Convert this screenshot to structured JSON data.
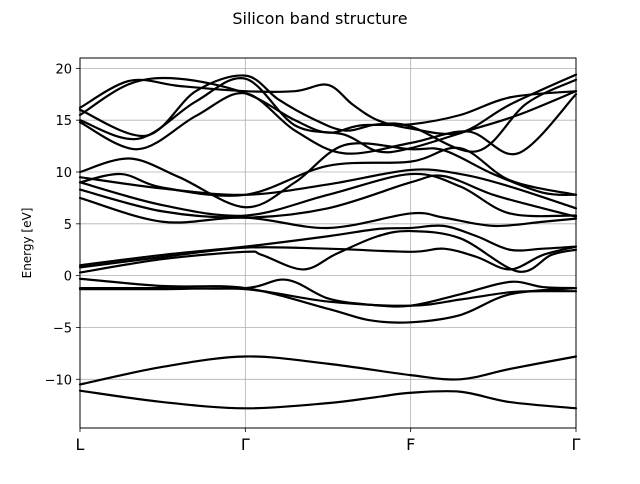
{
  "chart_data": {
    "type": "line",
    "title": "Silicon band structure",
    "xlabel": "",
    "ylabel": "Energy [eV]",
    "ylim": [
      -14.7,
      21.0
    ],
    "yticks": [
      -10,
      -5,
      0,
      5,
      10,
      15,
      20
    ],
    "xlim": [
      0,
      3
    ],
    "x_tick_positions": [
      0,
      1,
      2,
      3
    ],
    "x_tick_labels": [
      "L",
      "Γ",
      "F",
      "Γ"
    ],
    "grid": true,
    "line_color": "#000000",
    "series": [
      {
        "x": [
          0,
          0.5,
          1,
          1.5,
          1.8,
          2,
          2.3,
          2.6,
          3
        ],
        "y": [
          -11.1,
          -12.2,
          -12.8,
          -12.3,
          -11.7,
          -11.3,
          -11.2,
          -12.2,
          -12.8
        ]
      },
      {
        "x": [
          0,
          0.5,
          1,
          1.5,
          2,
          2.3,
          2.6,
          3
        ],
        "y": [
          -10.5,
          -8.8,
          -7.8,
          -8.5,
          -9.6,
          -10.0,
          -9.0,
          -7.8
        ]
      },
      {
        "x": [
          0,
          0.5,
          1,
          1.25,
          1.5,
          1.75,
          2,
          2.3,
          2.6,
          2.8,
          3
        ],
        "y": [
          -1.2,
          -1.2,
          -1.2,
          -0.4,
          -2.2,
          -2.8,
          -2.9,
          -1.8,
          -0.6,
          -1.1,
          -1.2
        ]
      },
      {
        "x": [
          0,
          0.5,
          1,
          1.5,
          2,
          2.3,
          2.6,
          2.8,
          3
        ],
        "y": [
          -1.3,
          -1.3,
          -1.3,
          -2.5,
          -2.9,
          -2.3,
          -1.6,
          -1.5,
          -1.5
        ]
      },
      {
        "x": [
          0,
          0.5,
          1,
          1.5,
          1.75,
          2,
          2.3,
          2.6,
          3
        ],
        "y": [
          -0.3,
          -1.0,
          -1.2,
          -3.2,
          -4.3,
          -4.5,
          -3.8,
          -1.8,
          -1.2
        ]
      },
      {
        "x": [
          0,
          0.5,
          1,
          1.1,
          1.35,
          1.55,
          1.8,
          2,
          2.3,
          2.65,
          2.85,
          3
        ],
        "y": [
          0.3,
          1.6,
          2.3,
          2.0,
          0.6,
          2.1,
          3.8,
          4.3,
          3.6,
          0.4,
          2.0,
          2.5
        ]
      },
      {
        "x": [
          0,
          0.5,
          1,
          1.5,
          2,
          2.2,
          2.4,
          2.6,
          2.8,
          3
        ],
        "y": [
          0.8,
          1.8,
          2.7,
          2.6,
          2.3,
          2.6,
          1.8,
          0.6,
          2.0,
          2.8
        ]
      },
      {
        "x": [
          0,
          0.5,
          1,
          1.5,
          1.8,
          2,
          2.2,
          2.4,
          2.6,
          2.8,
          3
        ],
        "y": [
          1.0,
          2.0,
          2.8,
          3.8,
          4.5,
          4.6,
          4.8,
          3.8,
          2.5,
          2.6,
          2.8
        ]
      },
      {
        "x": [
          0,
          0.5,
          1,
          1.5,
          2,
          2.2,
          2.5,
          2.8,
          3
        ],
        "y": [
          7.5,
          5.2,
          5.6,
          4.6,
          6.0,
          5.6,
          4.8,
          5.2,
          5.5
        ]
      },
      {
        "x": [
          0,
          0.5,
          1,
          1.5,
          2,
          2.2,
          2.5,
          2.8,
          3
        ],
        "y": [
          8.3,
          6.2,
          5.6,
          6.5,
          9.0,
          9.6,
          7.8,
          6.5,
          5.7
        ]
      },
      {
        "x": [
          0,
          0.5,
          1,
          1.5,
          2,
          2.3,
          2.6,
          3
        ],
        "y": [
          9.0,
          6.8,
          5.8,
          7.8,
          9.8,
          8.6,
          6.0,
          5.8
        ]
      },
      {
        "x": [
          0,
          0.5,
          1,
          1.5,
          2,
          2.3,
          2.6,
          3
        ],
        "y": [
          9.5,
          8.4,
          7.8,
          8.8,
          10.2,
          9.8,
          8.6,
          6.5
        ]
      },
      {
        "x": [
          0,
          0.3,
          0.6,
          1,
          1.3,
          1.6,
          2,
          2.2,
          2.5,
          2.8,
          3
        ],
        "y": [
          10.0,
          11.3,
          9.5,
          6.6,
          9.0,
          12.6,
          12.2,
          12.1,
          9.8,
          8.0,
          7.8
        ]
      },
      {
        "x": [
          0,
          0.25,
          0.5,
          1,
          1.5,
          2,
          2.3,
          2.6,
          3
        ],
        "y": [
          9.0,
          9.8,
          8.5,
          7.8,
          10.6,
          11.0,
          12.3,
          9.2,
          7.8
        ]
      },
      {
        "x": [
          0,
          0.35,
          0.7,
          1,
          1.3,
          1.6,
          2,
          2.35,
          2.65,
          3
        ],
        "y": [
          14.8,
          12.2,
          15.4,
          17.6,
          14.0,
          11.8,
          12.8,
          13.9,
          11.8,
          17.5
        ]
      },
      {
        "x": [
          0,
          0.35,
          0.7,
          1,
          1.3,
          1.6,
          1.8,
          2,
          2.35,
          2.65,
          3
        ],
        "y": [
          15.0,
          13.2,
          16.8,
          19.0,
          14.5,
          13.6,
          12.0,
          12.3,
          14.0,
          15.5,
          17.8
        ]
      },
      {
        "x": [
          0,
          0.4,
          0.7,
          1,
          1.2,
          1.4,
          1.6,
          1.8,
          2,
          2.4,
          2.7,
          3
        ],
        "y": [
          16.0,
          13.5,
          17.8,
          19.3,
          17.0,
          15.2,
          14.0,
          14.6,
          14.4,
          12.0,
          16.6,
          18.9
        ]
      },
      {
        "x": [
          0,
          0.3,
          0.6,
          1,
          1.3,
          1.5,
          1.65,
          1.8,
          2,
          2.3,
          2.6,
          3
        ],
        "y": [
          16.2,
          18.8,
          18.3,
          17.8,
          17.8,
          18.4,
          16.5,
          15.0,
          14.2,
          13.8,
          16.5,
          19.4
        ]
      },
      {
        "x": [
          0,
          0.3,
          0.6,
          1,
          1.3,
          1.5,
          1.7,
          2,
          2.3,
          2.6,
          3
        ],
        "y": [
          15.5,
          18.5,
          19.0,
          17.6,
          15.0,
          13.8,
          14.5,
          14.6,
          15.5,
          17.2,
          17.8
        ]
      }
    ]
  }
}
